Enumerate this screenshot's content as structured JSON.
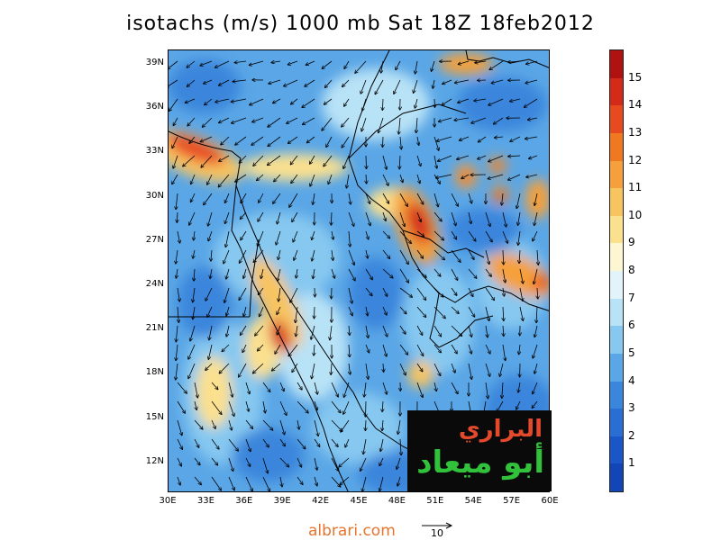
{
  "title": "isotachs (m/s) 1000 mb Sat 18Z 18feb2012",
  "map": {
    "lat_labels": [
      "39N",
      "36N",
      "33N",
      "30N",
      "27N",
      "24N",
      "21N",
      "18N",
      "15N",
      "12N"
    ],
    "lon_labels": [
      "30E",
      "33E",
      "36E",
      "39E",
      "42E",
      "45E",
      "48E",
      "51E",
      "54E",
      "57E",
      "60E"
    ],
    "lat_range": [
      10,
      40
    ],
    "lon_range": [
      30,
      60
    ]
  },
  "colorbar": {
    "labels": [
      "15",
      "14",
      "13",
      "12",
      "11",
      "10",
      "9",
      "8",
      "7",
      "6",
      "5",
      "4",
      "3",
      "2",
      "1"
    ],
    "colors": [
      "#b01212",
      "#d42a1a",
      "#e84a20",
      "#f07820",
      "#f5a03a",
      "#f8c460",
      "#fbe08e",
      "#fdf6d2",
      "#e2f4fa",
      "#b8e2f6",
      "#86c8f0",
      "#5aa6e6",
      "#3a86dc",
      "#2a6ed4",
      "#1a56c8",
      "#1245b5"
    ]
  },
  "logo": {
    "line1": "البراري",
    "line2": "أبو ميعاد"
  },
  "footer": {
    "site": "albrari.com",
    "reference_vector_label": "10"
  }
}
